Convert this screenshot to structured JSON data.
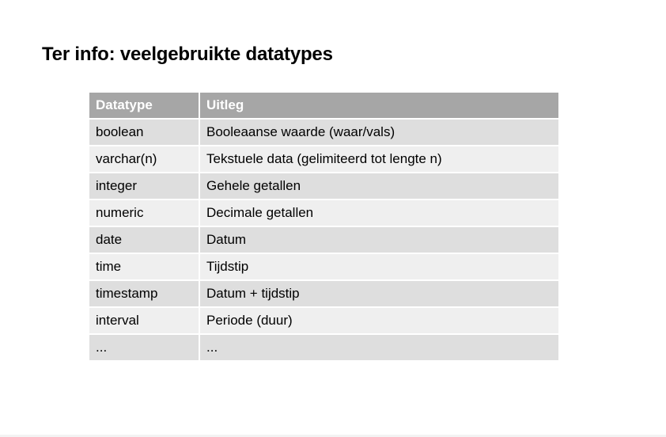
{
  "slide": {
    "title": "Ter info: veelgebruikte datatypes"
  },
  "table": {
    "headers": [
      "Datatype",
      "Uitleg"
    ],
    "rows": [
      [
        "boolean",
        "Booleaanse waarde (waar/vals)"
      ],
      [
        "varchar(n)",
        "Tekstuele data (gelimiteerd tot lengte n)"
      ],
      [
        "integer",
        "Gehele getallen"
      ],
      [
        "numeric",
        "Decimale getallen"
      ],
      [
        "date",
        "Datum"
      ],
      [
        "time",
        "Tijdstip"
      ],
      [
        "timestamp",
        "Datum + tijdstip"
      ],
      [
        "interval",
        "Periode (duur)"
      ],
      [
        "...",
        "..."
      ]
    ],
    "colors": {
      "header_bg": "#a6a6a6",
      "row_odd_bg": "#dedede",
      "row_even_bg": "#efefef"
    }
  }
}
